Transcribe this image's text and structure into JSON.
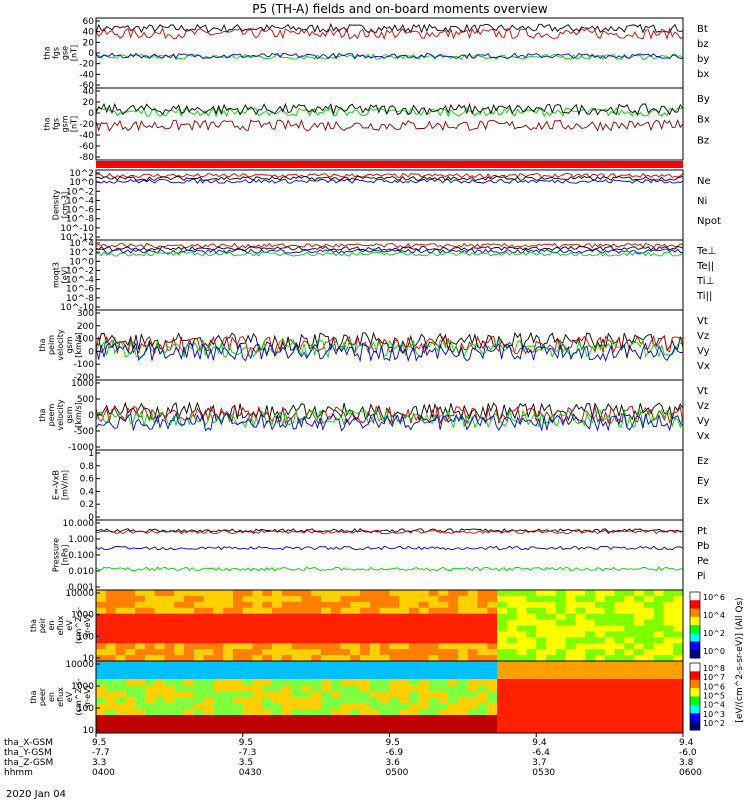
{
  "title": "P5 (TH-A) fields and on-board moments overview",
  "date_label": "2020 Jan 04",
  "time_axis": {
    "hhmm": [
      "0400",
      "0430",
      "0500",
      "0530",
      "0600"
    ],
    "rows": [
      {
        "label": "tha_X-GSM",
        "values": [
          "9.5",
          "9.5",
          "9.5",
          "9.4",
          "9.4"
        ]
      },
      {
        "label": "tha_Y-GSM",
        "values": [
          "-7.7",
          "-7.3",
          "-6.9",
          "-6.4",
          "-6.0"
        ]
      },
      {
        "label": "tha_Z-GSM",
        "values": [
          "3.3",
          "3.5",
          "3.6",
          "3.7",
          "3.8"
        ]
      },
      {
        "label": "hhmm",
        "values": [
          "0400",
          "0430",
          "0500",
          "0530",
          "0600"
        ]
      }
    ]
  },
  "colorbar": {
    "label": "[eV/(cm^2-s-sr-eV)] (All Qs)",
    "colors": [
      "#ffffff",
      "#ff0000",
      "#ff8000",
      "#ffff00",
      "#00ff00",
      "#00ffff",
      "#0000ff",
      "#000080"
    ]
  },
  "chart_data": [
    {
      "type": "line",
      "panel": "fgs_gse",
      "ylabel_lines": [
        "tha",
        "fgs",
        "gse",
        "[nT]"
      ],
      "yticks": [
        60,
        40,
        20,
        0,
        -20,
        -40,
        -60
      ],
      "ylim": [
        -70,
        65
      ],
      "series": [
        {
          "name": "Bt",
          "color": "#000000",
          "base": 45,
          "noise": 8
        },
        {
          "name": "bz",
          "color": "#d00000",
          "base": 35,
          "noise": 10
        },
        {
          "name": "by",
          "color": "#00d000",
          "base": -10,
          "noise": 5
        },
        {
          "name": "bx",
          "color": "#0000d0",
          "base": -8,
          "noise": 5
        }
      ]
    },
    {
      "type": "line",
      "panel": "fgs_gsm",
      "ylabel_lines": [
        "tha",
        "fgs",
        "gsm",
        "[nT]"
      ],
      "yticks": [
        40,
        20,
        0,
        -20,
        -40,
        -60,
        -80
      ],
      "ylim": [
        -90,
        45
      ],
      "series": [
        {
          "name": "By",
          "color": "#00d000",
          "base": 0,
          "noise": 8
        },
        {
          "name": "Bx",
          "color": "#000000",
          "base": 5,
          "noise": 10
        },
        {
          "name": "Bz",
          "color": "#8b0000",
          "base": -25,
          "noise": 10
        }
      ]
    },
    {
      "type": "line",
      "panel": "density",
      "ylabel_lines": [
        "Density",
        "[cm-3]"
      ],
      "yticks": [
        "10^2",
        "10^0",
        "10^-2",
        "10^-4",
        "10^-6",
        "10^-8",
        "10^-10",
        "10^-12"
      ],
      "series": [
        {
          "name": "Ne",
          "color": "#d00000"
        },
        {
          "name": "Ni",
          "color": "#000000"
        },
        {
          "name": "Npot",
          "color": "#0000d0"
        }
      ]
    },
    {
      "type": "line",
      "panel": "temperature",
      "ylabel_lines": [
        "moqt3",
        "[eV]"
      ],
      "yticks": [
        "10^4",
        "10^2",
        "10^0",
        "10^-2",
        "10^-4",
        "10^-6",
        "10^-8",
        "10^-10"
      ],
      "series": [
        {
          "name": "Te⊥",
          "color": "#d00000"
        },
        {
          "name": "Te||",
          "color": "#000000"
        },
        {
          "name": "Ti⊥",
          "color": "#0000d0"
        },
        {
          "name": "Ti||",
          "color": "#00d000"
        }
      ]
    },
    {
      "type": "line",
      "panel": "peim_velocity",
      "ylabel_lines": [
        "tha",
        "peim",
        "velocity",
        "gsm",
        "[km/s]"
      ],
      "yticks": [
        300,
        200,
        100,
        0,
        -100,
        -200
      ],
      "ylim": [
        -220,
        310
      ],
      "series": [
        {
          "name": "Vt",
          "color": "#000000"
        },
        {
          "name": "Vz",
          "color": "#d00000"
        },
        {
          "name": "Vy",
          "color": "#00d000"
        },
        {
          "name": "Vx",
          "color": "#0000d0"
        }
      ]
    },
    {
      "type": "line",
      "panel": "peem_velocity",
      "ylabel_lines": [
        "tha",
        "peem",
        "velocity",
        "gsm",
        "[km/s]"
      ],
      "yticks": [
        1000,
        500,
        0,
        -500,
        -1000
      ],
      "ylim": [
        -1050,
        1050
      ],
      "series": [
        {
          "name": "Vt",
          "color": "#000000"
        },
        {
          "name": "Vz",
          "color": "#d00000"
        },
        {
          "name": "Vy",
          "color": "#00d000"
        },
        {
          "name": "Vx",
          "color": "#0000d0"
        }
      ]
    },
    {
      "type": "line",
      "panel": "efield",
      "ylabel_lines": [
        "E=-VxB",
        "[mV/m]"
      ],
      "yticks": [
        1.0,
        0.8,
        0.6,
        0.4,
        0.2,
        0.0
      ],
      "ylim": [
        0,
        1
      ],
      "series": [
        {
          "name": "Ez",
          "color": "#d00000"
        },
        {
          "name": "Ey",
          "color": "#00d000"
        },
        {
          "name": "Ex",
          "color": "#0000d0"
        }
      ]
    },
    {
      "type": "line",
      "panel": "pressure",
      "ylabel_lines": [
        "Pressure",
        "[nPa]"
      ],
      "yticks": [
        "10.000",
        "1.000",
        "0.100",
        "0.010",
        "0.001"
      ],
      "series": [
        {
          "name": "Pt",
          "color": "#000000"
        },
        {
          "name": "Pb",
          "color": "#d00000"
        },
        {
          "name": "Pe",
          "color": "#00d000"
        },
        {
          "name": "Pi",
          "color": "#0000d0"
        }
      ]
    },
    {
      "type": "heatmap",
      "panel": "peir",
      "ylabel_lines": [
        "tha",
        "peir",
        "en",
        "eflux",
        "eV",
        "(cm^2-s-",
        "sr-eV)"
      ],
      "yticks": [
        "10000",
        "1000",
        "100",
        "10"
      ],
      "cbar_ticks": [
        "10^6",
        "10^4",
        "10^2",
        "10^0"
      ]
    },
    {
      "type": "heatmap",
      "panel": "peer",
      "ylabel_lines": [
        "tha",
        "peer",
        "en",
        "eflux",
        "eV",
        "(cm^2-s-",
        "sr-eV)"
      ],
      "yticks": [
        "10000",
        "1000",
        "100",
        "10"
      ],
      "cbar_ticks": [
        "10^8",
        "10^7",
        "10^6",
        "10^5",
        "10^4",
        "10^3",
        "10^2"
      ]
    }
  ]
}
